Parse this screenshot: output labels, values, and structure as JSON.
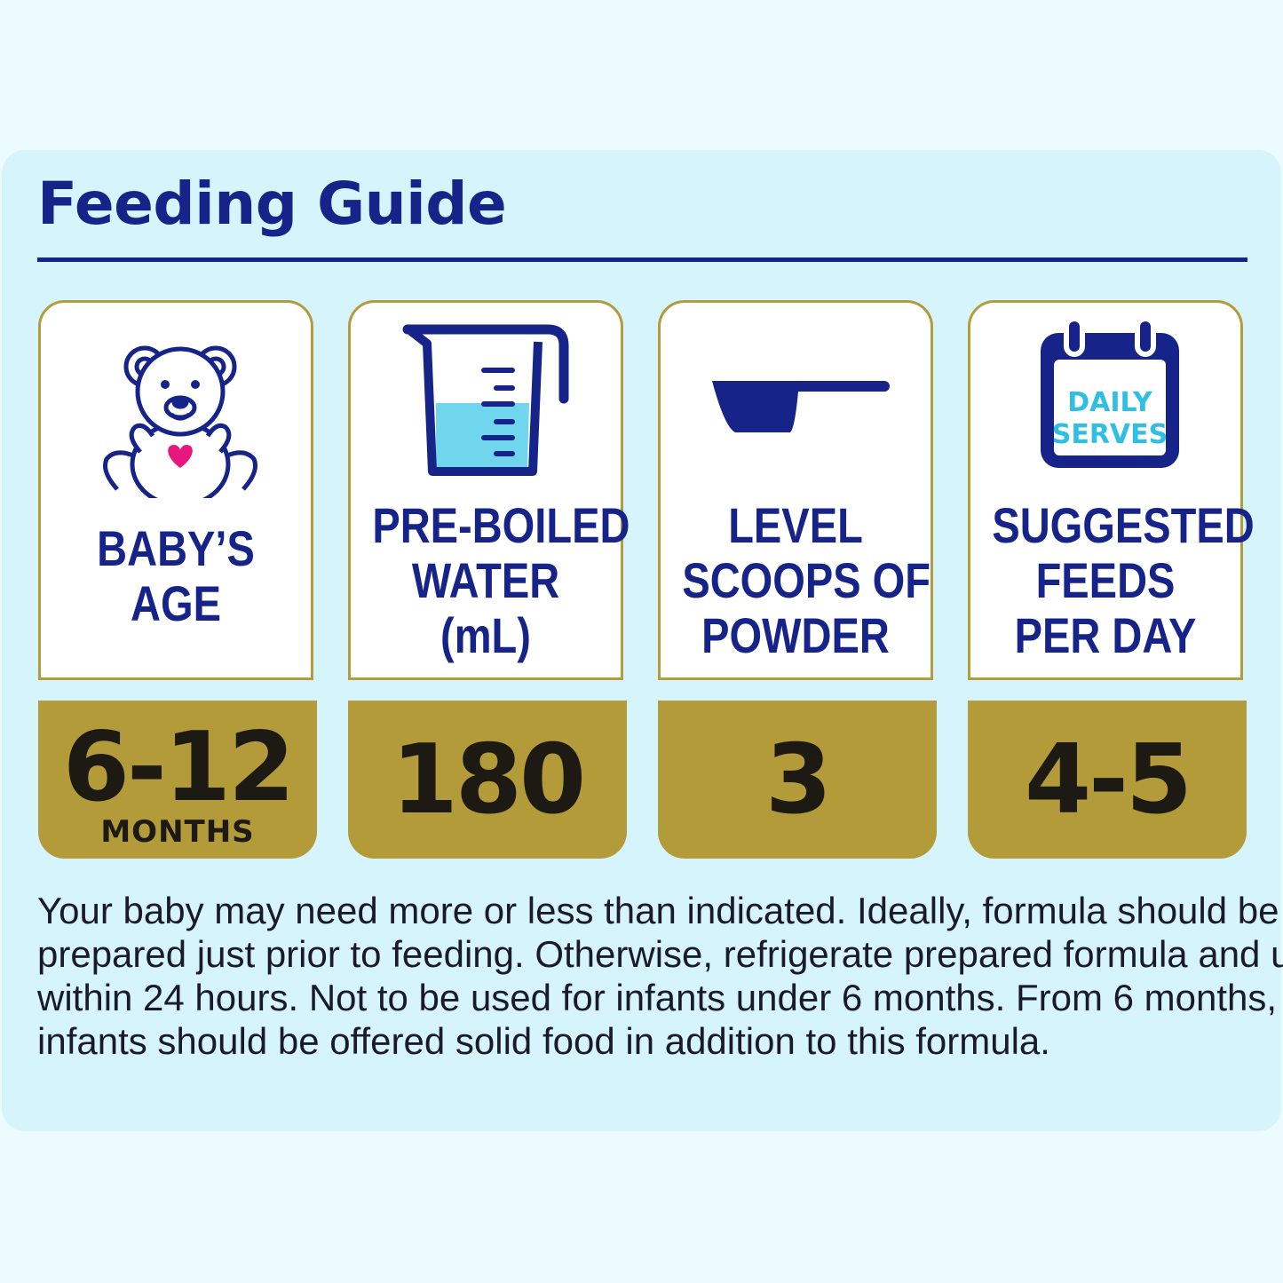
{
  "title": "Feeding Guide",
  "colors": {
    "navy": "#16248a",
    "gold": "#b39b3a",
    "panel": "#d6f4fb",
    "heart": "#e8177f",
    "water": "#6fd6ee"
  },
  "columns": [
    {
      "icon": "teddy-bear-icon",
      "label": [
        "BABY’S",
        "AGE"
      ],
      "value": "6-12",
      "unit": "MONTHS"
    },
    {
      "icon": "measuring-jug-icon",
      "label": [
        "PRE-BOILED",
        "WATER",
        "(mL)"
      ],
      "value": "180"
    },
    {
      "icon": "scoop-icon",
      "label": [
        "LEVEL",
        "SCOOPS OF",
        "POWDER"
      ],
      "value": "3"
    },
    {
      "icon": "calendar-icon",
      "icon_text": [
        "DAILY",
        "SERVES"
      ],
      "label": [
        "SUGGESTED",
        "FEEDS",
        "PER DAY"
      ],
      "value": "4-5"
    }
  ],
  "note": [
    "Your baby may need more or less than indicated. Ideally, formula should be",
    "prepared just prior to feeding. Otherwise, refrigerate prepared formula and use",
    "within 24 hours. Not to be used for infants under 6 months. From 6 months,",
    "infants should be offered solid food in addition to this formula."
  ]
}
